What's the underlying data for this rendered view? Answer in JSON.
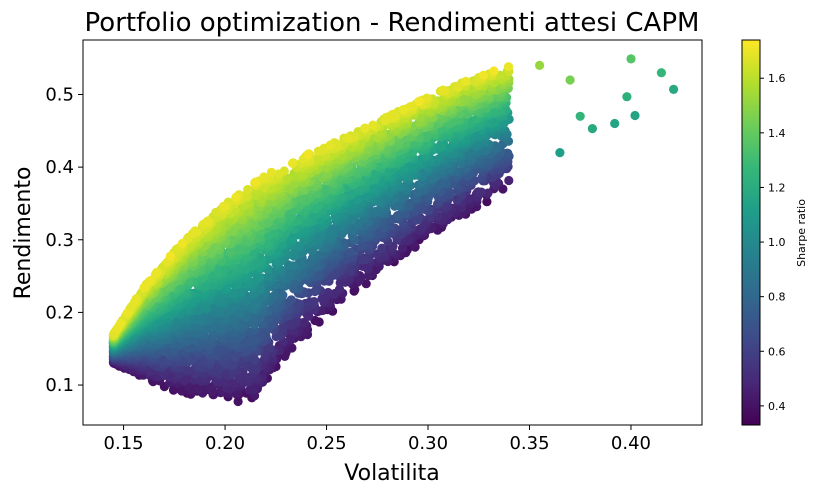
{
  "chart_data": {
    "type": "scatter",
    "title": "Portfolio optimization - Rendimenti attesi CAPM",
    "xlabel": "Volatilita",
    "ylabel": "Rendimento",
    "xlim": [
      0.13,
      0.435
    ],
    "ylim": [
      0.045,
      0.575
    ],
    "x_ticks": [
      0.15,
      0.2,
      0.25,
      0.3,
      0.35,
      0.4
    ],
    "x_tick_labels": [
      "0.15",
      "0.20",
      "0.25",
      "0.30",
      "0.35",
      "0.40"
    ],
    "y_ticks": [
      0.1,
      0.2,
      0.3,
      0.4,
      0.5
    ],
    "y_tick_labels": [
      "0.1",
      "0.2",
      "0.3",
      "0.4",
      "0.5"
    ],
    "grid": false,
    "colormap": "viridis",
    "colorbar": {
      "label": "Sharpe ratio",
      "range": [
        0.33,
        1.74
      ],
      "ticks": [
        0.4,
        0.6,
        0.8,
        1.0,
        1.2,
        1.4,
        1.6
      ],
      "tick_labels": [
        "0.4",
        "0.6",
        "0.8",
        "1.0",
        "1.2",
        "1.4",
        "1.6"
      ]
    },
    "color_by": "Sharpe ratio",
    "point_count_approx": 10000,
    "frontier_upper": [
      [
        0.145,
        0.17
      ],
      [
        0.16,
        0.235
      ],
      [
        0.18,
        0.3
      ],
      [
        0.2,
        0.35
      ],
      [
        0.22,
        0.39
      ],
      [
        0.25,
        0.43
      ],
      [
        0.28,
        0.47
      ],
      [
        0.31,
        0.51
      ],
      [
        0.34,
        0.54
      ]
    ],
    "frontier_lower": [
      [
        0.145,
        0.13
      ],
      [
        0.17,
        0.095
      ],
      [
        0.2,
        0.075
      ],
      [
        0.215,
        0.075
      ],
      [
        0.23,
        0.14
      ],
      [
        0.26,
        0.22
      ],
      [
        0.3,
        0.3
      ],
      [
        0.34,
        0.37
      ]
    ],
    "outliers": [
      {
        "x": 0.4,
        "y": 0.549,
        "sharpe": 1.36
      },
      {
        "x": 0.415,
        "y": 0.53,
        "sharpe": 1.26
      },
      {
        "x": 0.421,
        "y": 0.507,
        "sharpe": 1.18
      },
      {
        "x": 0.398,
        "y": 0.497,
        "sharpe": 1.22
      },
      {
        "x": 0.402,
        "y": 0.471,
        "sharpe": 1.15
      },
      {
        "x": 0.381,
        "y": 0.453,
        "sharpe": 1.18
      },
      {
        "x": 0.392,
        "y": 0.46,
        "sharpe": 1.15
      },
      {
        "x": 0.375,
        "y": 0.47,
        "sharpe": 1.25
      },
      {
        "x": 0.365,
        "y": 0.42,
        "sharpe": 1.12
      },
      {
        "x": 0.37,
        "y": 0.52,
        "sharpe": 1.45
      },
      {
        "x": 0.355,
        "y": 0.54,
        "sharpe": 1.52
      }
    ]
  }
}
